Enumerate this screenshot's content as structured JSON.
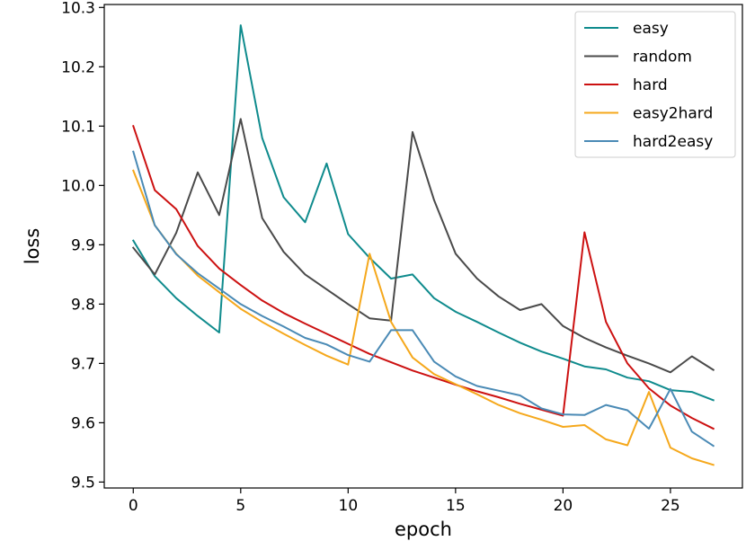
{
  "chart_data": {
    "type": "line",
    "title": "",
    "xlabel": "epoch",
    "ylabel": "loss",
    "xlim": [
      -1.35,
      28.35
    ],
    "ylim": [
      9.49,
      10.305
    ],
    "x_ticks": [
      0,
      5,
      10,
      15,
      20,
      25
    ],
    "y_ticks": [
      9.5,
      9.6,
      9.7,
      9.8,
      9.9,
      10.0,
      10.1,
      10.2,
      10.3
    ],
    "grid": false,
    "legend_position": "top-right",
    "x": [
      0,
      1,
      2,
      3,
      4,
      5,
      6,
      7,
      8,
      9,
      10,
      11,
      12,
      13,
      14,
      15,
      16,
      17,
      18,
      19,
      20,
      21,
      22,
      23,
      24,
      25,
      26,
      27
    ],
    "series": [
      {
        "name": "easy",
        "color": "#0f8b8d",
        "values": [
          9.907,
          9.847,
          9.81,
          9.78,
          9.752,
          10.27,
          10.08,
          9.98,
          9.938,
          10.037,
          9.918,
          9.878,
          9.843,
          9.85,
          9.81,
          9.787,
          9.77,
          9.752,
          9.735,
          9.72,
          9.708,
          9.695,
          9.69,
          9.676,
          9.67,
          9.655,
          9.652,
          9.638
        ]
      },
      {
        "name": "random",
        "color": "#4a4a4a",
        "values": [
          9.895,
          9.85,
          9.92,
          10.022,
          9.95,
          10.112,
          9.945,
          9.888,
          9.85,
          9.825,
          9.8,
          9.776,
          9.772,
          10.09,
          9.975,
          9.885,
          9.843,
          9.813,
          9.79,
          9.8,
          9.763,
          9.743,
          9.727,
          9.713,
          9.7,
          9.685,
          9.712,
          9.689
        ]
      },
      {
        "name": "hard",
        "color": "#cc1111",
        "values": [
          10.1,
          9.992,
          9.96,
          9.898,
          9.86,
          9.832,
          9.806,
          9.785,
          9.767,
          9.75,
          9.733,
          9.716,
          9.702,
          9.688,
          9.676,
          9.664,
          9.653,
          9.643,
          9.632,
          9.622,
          9.612,
          9.921,
          9.77,
          9.7,
          9.658,
          9.629,
          9.608,
          9.59
        ]
      },
      {
        "name": "easy2hard",
        "color": "#f5a81c",
        "values": [
          10.025,
          9.933,
          9.885,
          9.848,
          9.82,
          9.792,
          9.77,
          9.75,
          9.731,
          9.713,
          9.698,
          9.885,
          9.77,
          9.71,
          9.682,
          9.665,
          9.648,
          9.63,
          9.616,
          9.605,
          9.593,
          9.596,
          9.572,
          9.562,
          9.652,
          9.558,
          9.54,
          9.529
        ]
      },
      {
        "name": "hard2easy",
        "color": "#4a8ab5",
        "values": [
          10.057,
          9.933,
          9.884,
          9.852,
          9.826,
          9.8,
          9.78,
          9.762,
          9.743,
          9.732,
          9.714,
          9.703,
          9.756,
          9.756,
          9.703,
          9.678,
          9.662,
          9.654,
          9.646,
          9.624,
          9.614,
          9.613,
          9.63,
          9.621,
          9.59,
          9.657,
          9.585,
          9.561
        ]
      }
    ]
  }
}
